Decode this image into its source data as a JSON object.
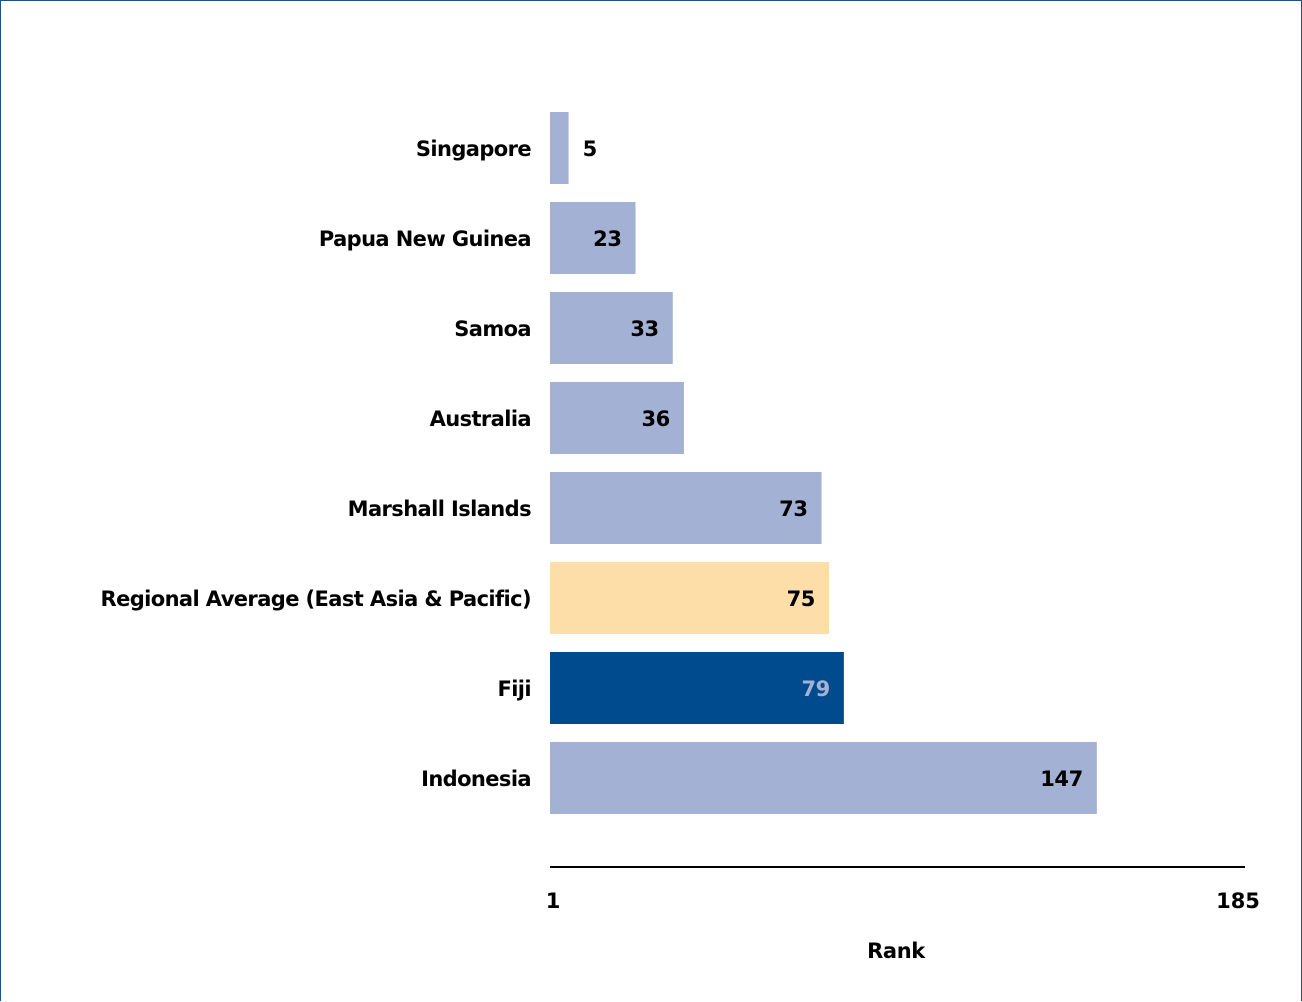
{
  "chart_data": {
    "type": "bar",
    "orientation": "horizontal",
    "title": "",
    "xlabel": "Rank",
    "ylabel": "",
    "xlim": [
      1,
      185
    ],
    "x_ticks": [
      "1",
      "185"
    ],
    "grid": false,
    "legend": "none",
    "categories": [
      "Singapore",
      "Papua New Guinea",
      "Samoa",
      "Australia",
      "Marshall Islands",
      "Regional Average (East Asia & Pacific)",
      "Fiji",
      "Indonesia"
    ],
    "values": [
      5,
      23,
      33,
      36,
      73,
      75,
      79,
      147
    ],
    "bar_colors": [
      "#a3b1d4",
      "#a3b1d4",
      "#a3b1d4",
      "#a3b1d4",
      "#a3b1d4",
      "#fedea8",
      "#004b8d",
      "#a3b1d4"
    ],
    "value_label_colors": [
      "#000000",
      "#000000",
      "#000000",
      "#000000",
      "#000000",
      "#000000",
      "#a3b1d4",
      "#000000"
    ],
    "axis_color": "#000000",
    "frame_color": "#1f4e8c"
  }
}
